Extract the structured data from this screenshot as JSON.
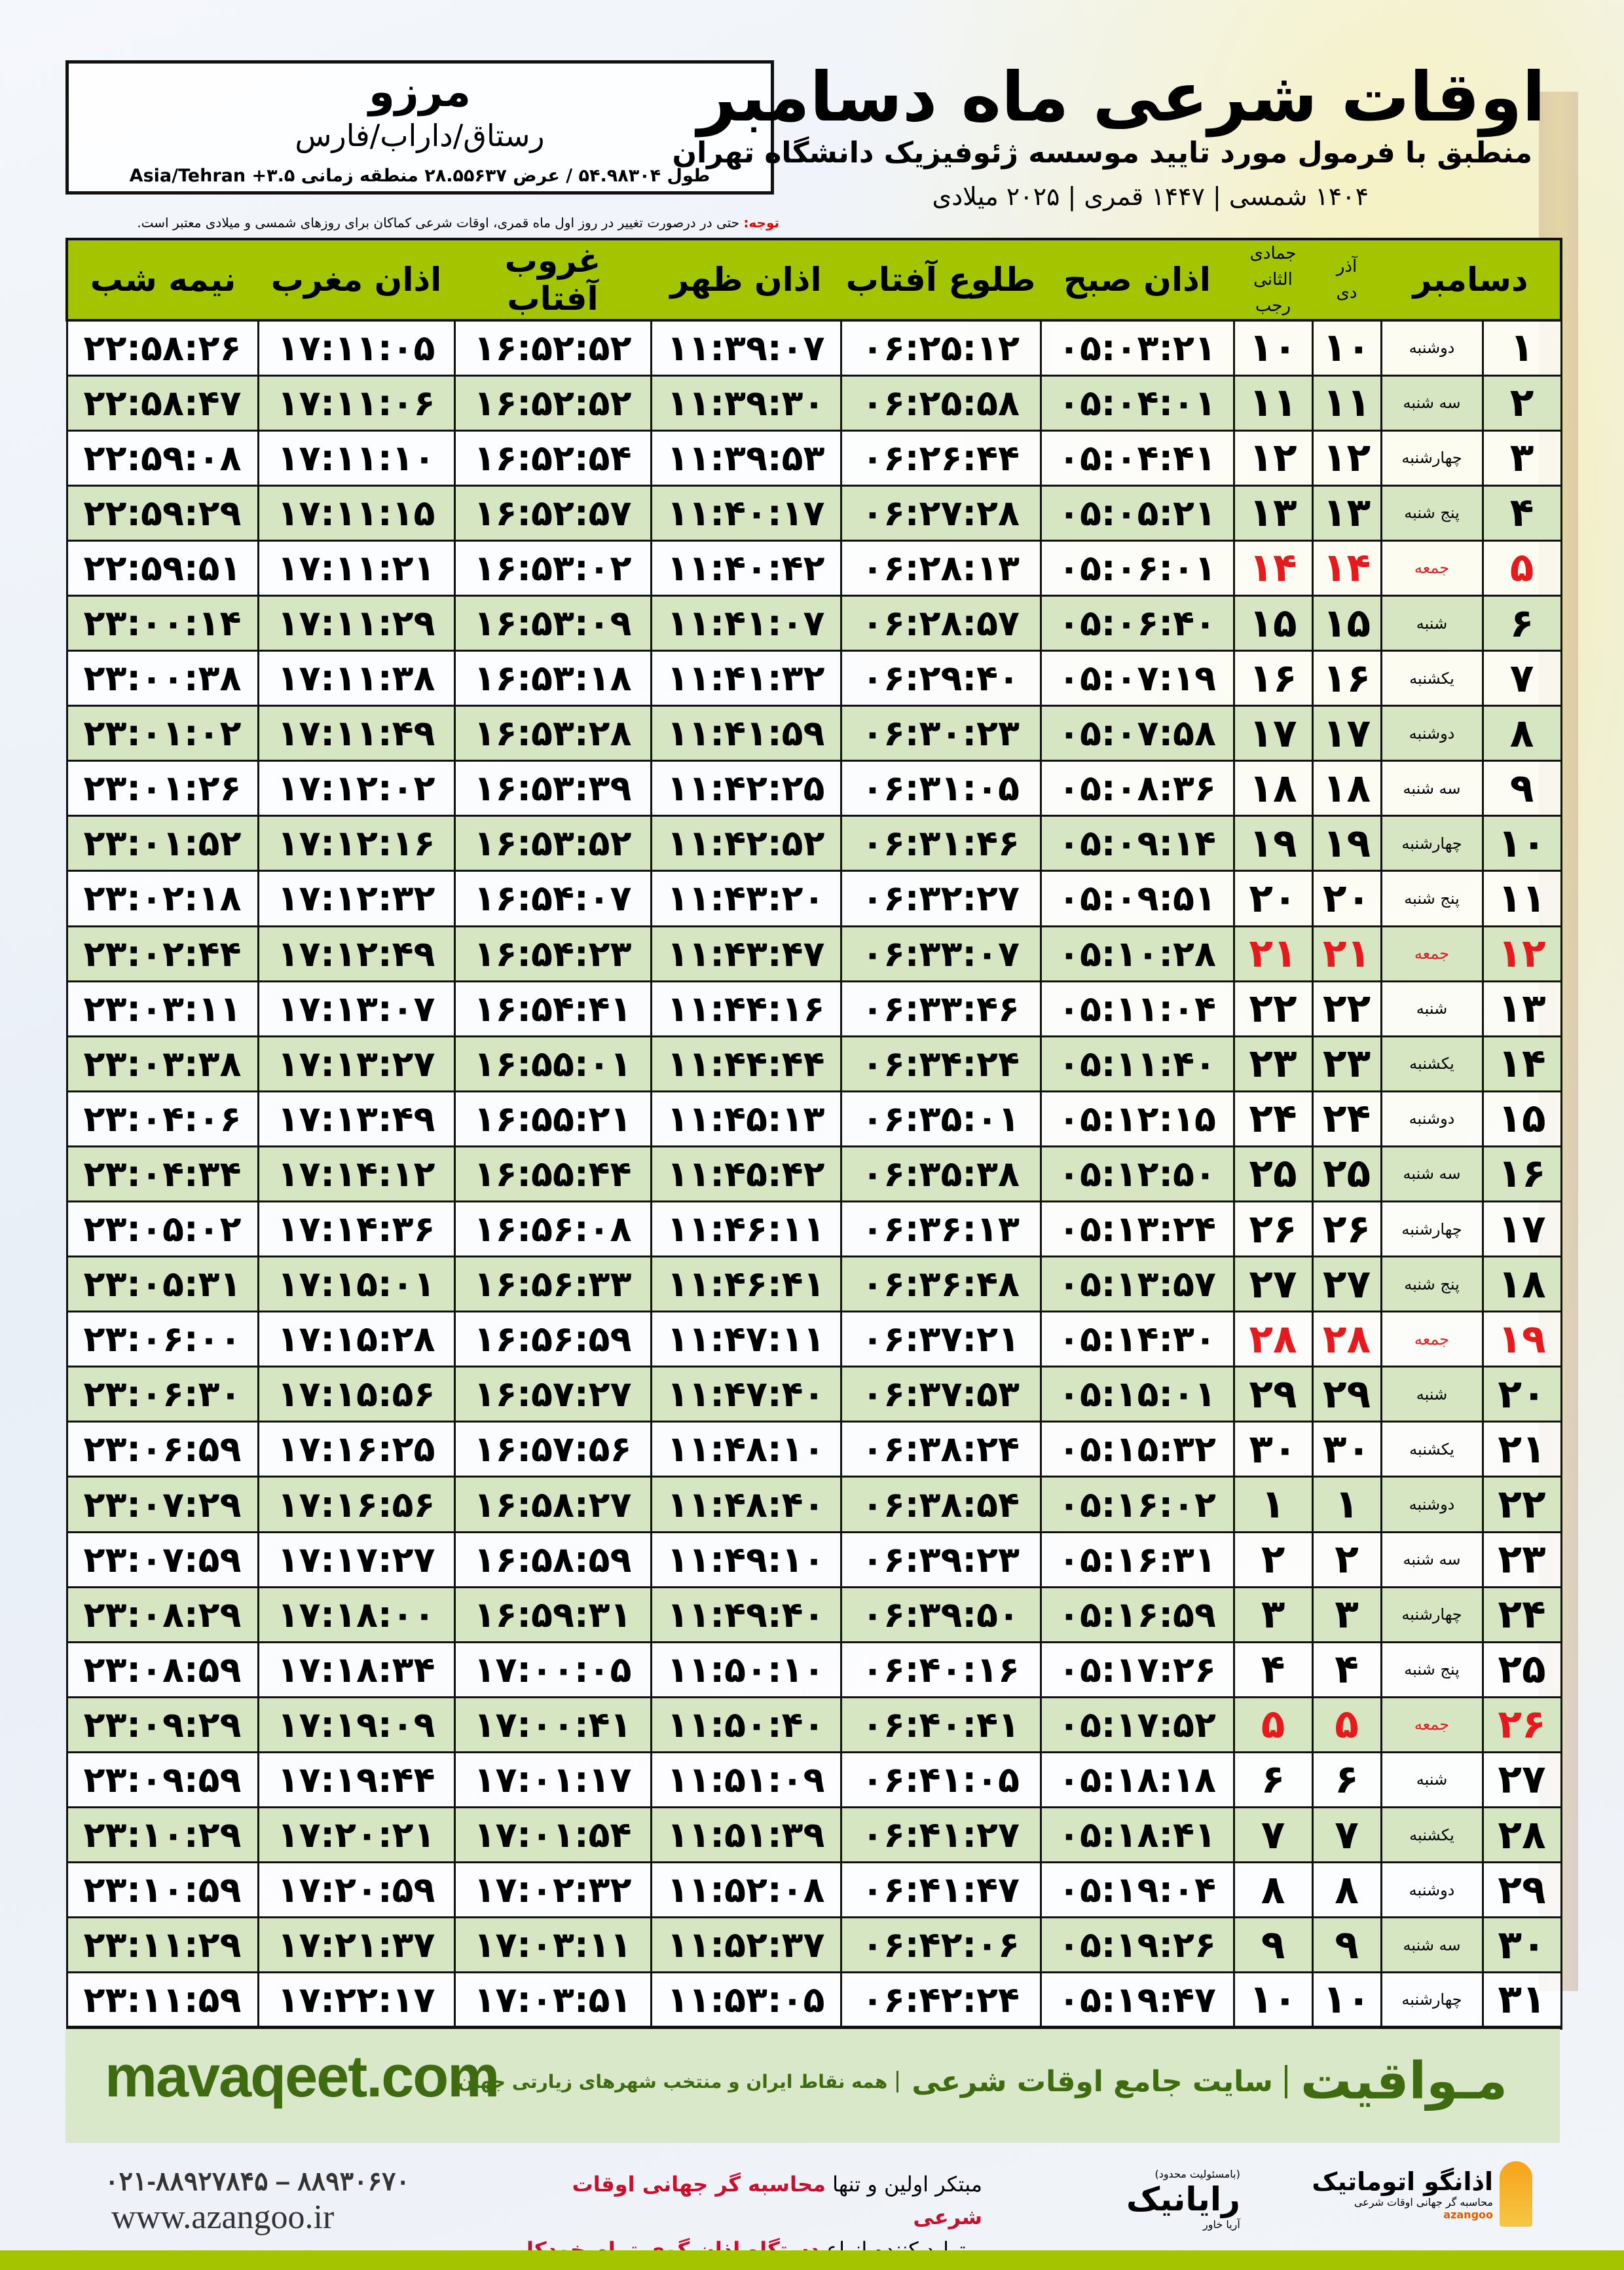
{
  "header": {
    "title": "اوقات شرعی ماه دسامبر",
    "subtitle": "منطبق با فرمول مورد تایید موسسه ژئوفیزیک دانشگاه تهران",
    "dates": "۱۴۰۴ شمسی | ۱۴۴۷ قمری | ۲۰۲۵ میلادی"
  },
  "location": {
    "name": "مرزو",
    "region": "رستاق/داراب/فارس",
    "coords": "طول ۵۴.۹۸۳۰۴ / عرض ۲۸.۵۵۶۳۷ منطقه زمانی ۳.۵+ Asia/Tehran"
  },
  "note": {
    "label": "توجه:",
    "text": " حتی در درصورت تغییر در روز اول ماه قمری، اوقات شرعی کماکان برای روزهای شمسی و میلادی معتبر است."
  },
  "table": {
    "headers": {
      "month": "دسامبر",
      "shamsi_top": "آذر",
      "shamsi_bottom": "دی",
      "qamari_top": "جمادی الثانی",
      "qamari_bottom": "رجب",
      "sobh": "اذان صبح",
      "tolu": "طلوع آفتاب",
      "zohr": "اذان ظهر",
      "ghorub": "غروب آفتاب",
      "maghreb": "اذان مغرب",
      "nime": "نیمه شب"
    },
    "holiday_color": "#e6191c",
    "header_color": "#a4c400",
    "rows": [
      {
        "day": "۱",
        "weekday": "دوشنبه",
        "shamsi": "۱۰",
        "qamari": "۱۰",
        "sobh": "۰۵:۰۳:۲۱",
        "tolu": "۰۶:۲۵:۱۲",
        "zohr": "۱۱:۳۹:۰۷",
        "ghorub": "۱۶:۵۲:۵۲",
        "maghreb": "۱۷:۱۱:۰۵",
        "nime": "۲۲:۵۸:۲۶"
      },
      {
        "day": "۲",
        "weekday": "سه شنبه",
        "shamsi": "۱۱",
        "qamari": "۱۱",
        "sobh": "۰۵:۰۴:۰۱",
        "tolu": "۰۶:۲۵:۵۸",
        "zohr": "۱۱:۳۹:۳۰",
        "ghorub": "۱۶:۵۲:۵۲",
        "maghreb": "۱۷:۱۱:۰۶",
        "nime": "۲۲:۵۸:۴۷"
      },
      {
        "day": "۳",
        "weekday": "چهارشنبه",
        "shamsi": "۱۲",
        "qamari": "۱۲",
        "sobh": "۰۵:۰۴:۴۱",
        "tolu": "۰۶:۲۶:۴۴",
        "zohr": "۱۱:۳۹:۵۳",
        "ghorub": "۱۶:۵۲:۵۴",
        "maghreb": "۱۷:۱۱:۱۰",
        "nime": "۲۲:۵۹:۰۸"
      },
      {
        "day": "۴",
        "weekday": "پنج شنبه",
        "shamsi": "۱۳",
        "qamari": "۱۳",
        "sobh": "۰۵:۰۵:۲۱",
        "tolu": "۰۶:۲۷:۲۸",
        "zohr": "۱۱:۴۰:۱۷",
        "ghorub": "۱۶:۵۲:۵۷",
        "maghreb": "۱۷:۱۱:۱۵",
        "nime": "۲۲:۵۹:۲۹"
      },
      {
        "day": "۵",
        "weekday": "جمعه",
        "holiday": true,
        "shamsi": "۱۴",
        "qamari": "۱۴",
        "sobh": "۰۵:۰۶:۰۱",
        "tolu": "۰۶:۲۸:۱۳",
        "zohr": "۱۱:۴۰:۴۲",
        "ghorub": "۱۶:۵۳:۰۲",
        "maghreb": "۱۷:۱۱:۲۱",
        "nime": "۲۲:۵۹:۵۱"
      },
      {
        "day": "۶",
        "weekday": "شنبه",
        "shamsi": "۱۵",
        "qamari": "۱۵",
        "sobh": "۰۵:۰۶:۴۰",
        "tolu": "۰۶:۲۸:۵۷",
        "zohr": "۱۱:۴۱:۰۷",
        "ghorub": "۱۶:۵۳:۰۹",
        "maghreb": "۱۷:۱۱:۲۹",
        "nime": "۲۳:۰۰:۱۴"
      },
      {
        "day": "۷",
        "weekday": "یکشنبه",
        "shamsi": "۱۶",
        "qamari": "۱۶",
        "sobh": "۰۵:۰۷:۱۹",
        "tolu": "۰۶:۲۹:۴۰",
        "zohr": "۱۱:۴۱:۳۲",
        "ghorub": "۱۶:۵۳:۱۸",
        "maghreb": "۱۷:۱۱:۳۸",
        "nime": "۲۳:۰۰:۳۸"
      },
      {
        "day": "۸",
        "weekday": "دوشنبه",
        "shamsi": "۱۷",
        "qamari": "۱۷",
        "sobh": "۰۵:۰۷:۵۸",
        "tolu": "۰۶:۳۰:۲۳",
        "zohr": "۱۱:۴۱:۵۹",
        "ghorub": "۱۶:۵۳:۲۸",
        "maghreb": "۱۷:۱۱:۴۹",
        "nime": "۲۳:۰۱:۰۲"
      },
      {
        "day": "۹",
        "weekday": "سه شنبه",
        "shamsi": "۱۸",
        "qamari": "۱۸",
        "sobh": "۰۵:۰۸:۳۶",
        "tolu": "۰۶:۳۱:۰۵",
        "zohr": "۱۱:۴۲:۲۵",
        "ghorub": "۱۶:۵۳:۳۹",
        "maghreb": "۱۷:۱۲:۰۲",
        "nime": "۲۳:۰۱:۲۶"
      },
      {
        "day": "۱۰",
        "weekday": "چهارشنبه",
        "shamsi": "۱۹",
        "qamari": "۱۹",
        "sobh": "۰۵:۰۹:۱۴",
        "tolu": "۰۶:۳۱:۴۶",
        "zohr": "۱۱:۴۲:۵۲",
        "ghorub": "۱۶:۵۳:۵۲",
        "maghreb": "۱۷:۱۲:۱۶",
        "nime": "۲۳:۰۱:۵۲"
      },
      {
        "day": "۱۱",
        "weekday": "پنج شنبه",
        "shamsi": "۲۰",
        "qamari": "۲۰",
        "sobh": "۰۵:۰۹:۵۱",
        "tolu": "۰۶:۳۲:۲۷",
        "zohr": "۱۱:۴۳:۲۰",
        "ghorub": "۱۶:۵۴:۰۷",
        "maghreb": "۱۷:۱۲:۳۲",
        "nime": "۲۳:۰۲:۱۸"
      },
      {
        "day": "۱۲",
        "weekday": "جمعه",
        "holiday": true,
        "shamsi": "۲۱",
        "qamari": "۲۱",
        "sobh": "۰۵:۱۰:۲۸",
        "tolu": "۰۶:۳۳:۰۷",
        "zohr": "۱۱:۴۳:۴۷",
        "ghorub": "۱۶:۵۴:۲۳",
        "maghreb": "۱۷:۱۲:۴۹",
        "nime": "۲۳:۰۲:۴۴"
      },
      {
        "day": "۱۳",
        "weekday": "شنبه",
        "shamsi": "۲۲",
        "qamari": "۲۲",
        "sobh": "۰۵:۱۱:۰۴",
        "tolu": "۰۶:۳۳:۴۶",
        "zohr": "۱۱:۴۴:۱۶",
        "ghorub": "۱۶:۵۴:۴۱",
        "maghreb": "۱۷:۱۳:۰۷",
        "nime": "۲۳:۰۳:۱۱"
      },
      {
        "day": "۱۴",
        "weekday": "یکشنبه",
        "shamsi": "۲۳",
        "qamari": "۲۳",
        "sobh": "۰۵:۱۱:۴۰",
        "tolu": "۰۶:۳۴:۲۴",
        "zohr": "۱۱:۴۴:۴۴",
        "ghorub": "۱۶:۵۵:۰۱",
        "maghreb": "۱۷:۱۳:۲۷",
        "nime": "۲۳:۰۳:۳۸"
      },
      {
        "day": "۱۵",
        "weekday": "دوشنبه",
        "shamsi": "۲۴",
        "qamari": "۲۴",
        "sobh": "۰۵:۱۲:۱۵",
        "tolu": "۰۶:۳۵:۰۱",
        "zohr": "۱۱:۴۵:۱۳",
        "ghorub": "۱۶:۵۵:۲۱",
        "maghreb": "۱۷:۱۳:۴۹",
        "nime": "۲۳:۰۴:۰۶"
      },
      {
        "day": "۱۶",
        "weekday": "سه شنبه",
        "shamsi": "۲۵",
        "qamari": "۲۵",
        "sobh": "۰۵:۱۲:۵۰",
        "tolu": "۰۶:۳۵:۳۸",
        "zohr": "۱۱:۴۵:۴۲",
        "ghorub": "۱۶:۵۵:۴۴",
        "maghreb": "۱۷:۱۴:۱۲",
        "nime": "۲۳:۰۴:۳۴"
      },
      {
        "day": "۱۷",
        "weekday": "چهارشنبه",
        "shamsi": "۲۶",
        "qamari": "۲۶",
        "sobh": "۰۵:۱۳:۲۴",
        "tolu": "۰۶:۳۶:۱۳",
        "zohr": "۱۱:۴۶:۱۱",
        "ghorub": "۱۶:۵۶:۰۸",
        "maghreb": "۱۷:۱۴:۳۶",
        "nime": "۲۳:۰۵:۰۲"
      },
      {
        "day": "۱۸",
        "weekday": "پنج شنبه",
        "shamsi": "۲۷",
        "qamari": "۲۷",
        "sobh": "۰۵:۱۳:۵۷",
        "tolu": "۰۶:۳۶:۴۸",
        "zohr": "۱۱:۴۶:۴۱",
        "ghorub": "۱۶:۵۶:۳۳",
        "maghreb": "۱۷:۱۵:۰۱",
        "nime": "۲۳:۰۵:۳۱"
      },
      {
        "day": "۱۹",
        "weekday": "جمعه",
        "holiday": true,
        "shamsi": "۲۸",
        "qamari": "۲۸",
        "sobh": "۰۵:۱۴:۳۰",
        "tolu": "۰۶:۳۷:۲۱",
        "zohr": "۱۱:۴۷:۱۱",
        "ghorub": "۱۶:۵۶:۵۹",
        "maghreb": "۱۷:۱۵:۲۸",
        "nime": "۲۳:۰۶:۰۰"
      },
      {
        "day": "۲۰",
        "weekday": "شنبه",
        "shamsi": "۲۹",
        "qamari": "۲۹",
        "sobh": "۰۵:۱۵:۰۱",
        "tolu": "۰۶:۳۷:۵۳",
        "zohr": "۱۱:۴۷:۴۰",
        "ghorub": "۱۶:۵۷:۲۷",
        "maghreb": "۱۷:۱۵:۵۶",
        "nime": "۲۳:۰۶:۳۰"
      },
      {
        "day": "۲۱",
        "weekday": "یکشنبه",
        "shamsi": "۳۰",
        "qamari": "۳۰",
        "sobh": "۰۵:۱۵:۳۲",
        "tolu": "۰۶:۳۸:۲۴",
        "zohr": "۱۱:۴۸:۱۰",
        "ghorub": "۱۶:۵۷:۵۶",
        "maghreb": "۱۷:۱۶:۲۵",
        "nime": "۲۳:۰۶:۵۹"
      },
      {
        "day": "۲۲",
        "weekday": "دوشنبه",
        "shamsi": "۱",
        "qamari": "۱",
        "sobh": "۰۵:۱۶:۰۲",
        "tolu": "۰۶:۳۸:۵۴",
        "zohr": "۱۱:۴۸:۴۰",
        "ghorub": "۱۶:۵۸:۲۷",
        "maghreb": "۱۷:۱۶:۵۶",
        "nime": "۲۳:۰۷:۲۹"
      },
      {
        "day": "۲۳",
        "weekday": "سه شنبه",
        "shamsi": "۲",
        "qamari": "۲",
        "sobh": "۰۵:۱۶:۳۱",
        "tolu": "۰۶:۳۹:۲۳",
        "zohr": "۱۱:۴۹:۱۰",
        "ghorub": "۱۶:۵۸:۵۹",
        "maghreb": "۱۷:۱۷:۲۷",
        "nime": "۲۳:۰۷:۵۹"
      },
      {
        "day": "۲۴",
        "weekday": "چهارشنبه",
        "shamsi": "۳",
        "qamari": "۳",
        "sobh": "۰۵:۱۶:۵۹",
        "tolu": "۰۶:۳۹:۵۰",
        "zohr": "۱۱:۴۹:۴۰",
        "ghorub": "۱۶:۵۹:۳۱",
        "maghreb": "۱۷:۱۸:۰۰",
        "nime": "۲۳:۰۸:۲۹"
      },
      {
        "day": "۲۵",
        "weekday": "پنج شنبه",
        "shamsi": "۴",
        "qamari": "۴",
        "sobh": "۰۵:۱۷:۲۶",
        "tolu": "۰۶:۴۰:۱۶",
        "zohr": "۱۱:۵۰:۱۰",
        "ghorub": "۱۷:۰۰:۰۵",
        "maghreb": "۱۷:۱۸:۳۴",
        "nime": "۲۳:۰۸:۵۹"
      },
      {
        "day": "۲۶",
        "weekday": "جمعه",
        "holiday": true,
        "shamsi": "۵",
        "qamari": "۵",
        "sobh": "۰۵:۱۷:۵۲",
        "tolu": "۰۶:۴۰:۴۱",
        "zohr": "۱۱:۵۰:۴۰",
        "ghorub": "۱۷:۰۰:۴۱",
        "maghreb": "۱۷:۱۹:۰۹",
        "nime": "۲۳:۰۹:۲۹"
      },
      {
        "day": "۲۷",
        "weekday": "شنبه",
        "shamsi": "۶",
        "qamari": "۶",
        "sobh": "۰۵:۱۸:۱۸",
        "tolu": "۰۶:۴۱:۰۵",
        "zohr": "۱۱:۵۱:۰۹",
        "ghorub": "۱۷:۰۱:۱۷",
        "maghreb": "۱۷:۱۹:۴۴",
        "nime": "۲۳:۰۹:۵۹"
      },
      {
        "day": "۲۸",
        "weekday": "یکشنبه",
        "shamsi": "۷",
        "qamari": "۷",
        "sobh": "۰۵:۱۸:۴۱",
        "tolu": "۰۶:۴۱:۲۷",
        "zohr": "۱۱:۵۱:۳۹",
        "ghorub": "۱۷:۰۱:۵۴",
        "maghreb": "۱۷:۲۰:۲۱",
        "nime": "۲۳:۱۰:۲۹"
      },
      {
        "day": "۲۹",
        "weekday": "دوشنبه",
        "shamsi": "۸",
        "qamari": "۸",
        "sobh": "۰۵:۱۹:۰۴",
        "tolu": "۰۶:۴۱:۴۷",
        "zohr": "۱۱:۵۲:۰۸",
        "ghorub": "۱۷:۰۲:۳۲",
        "maghreb": "۱۷:۲۰:۵۹",
        "nime": "۲۳:۱۰:۵۹"
      },
      {
        "day": "۳۰",
        "weekday": "سه شنبه",
        "shamsi": "۹",
        "qamari": "۹",
        "sobh": "۰۵:۱۹:۲۶",
        "tolu": "۰۶:۴۲:۰۶",
        "zohr": "۱۱:۵۲:۳۷",
        "ghorub": "۱۷:۰۳:۱۱",
        "maghreb": "۱۷:۲۱:۳۷",
        "nime": "۲۳:۱۱:۲۹"
      },
      {
        "day": "۳۱",
        "weekday": "چهارشنبه",
        "shamsi": "۱۰",
        "qamari": "۱۰",
        "sobh": "۰۵:۱۹:۴۷",
        "tolu": "۰۶:۴۲:۲۴",
        "zohr": "۱۱:۵۳:۰۵",
        "ghorub": "۱۷:۰۳:۵۱",
        "maghreb": "۱۷:۲۲:۱۷",
        "nime": "۲۳:۱۱:۵۹"
      }
    ]
  },
  "footer": {
    "brand": "مـواقیت",
    "tagline": "سایت جامع اوقات شرعی",
    "tagline2": "همه نقاط ایران و منتخب شهرهای زیارتی جهان",
    "site": "mavaqeet.com",
    "phone": "۰۲۱-۸۸۹۲۷۸۴۵ – ۸۸۹۳۰۶۷۰",
    "www": "www.azangoo.ir",
    "promo_line1_a": "مبتکر اولین و تنها ",
    "promo_line1_b": "محاسبه گر جهانی اوقات شرعی",
    "promo_line2_a": "و تولید کننده انواع ",
    "promo_line2_b": "دستگاه اذان گوی تمام خودکار ماهواره ای",
    "rayanik_small": "(بامسئولیت محدود)",
    "rayanik": "رایانیک",
    "rayanik_side": "آریا خاور",
    "azangoo_title": "اذانگو اتوماتیک",
    "azangoo_sub": "محاسبه گر جهانی اوقات شرعی",
    "azangoo_en": "azangoo",
    "brand_color": "#3f6b10"
  }
}
